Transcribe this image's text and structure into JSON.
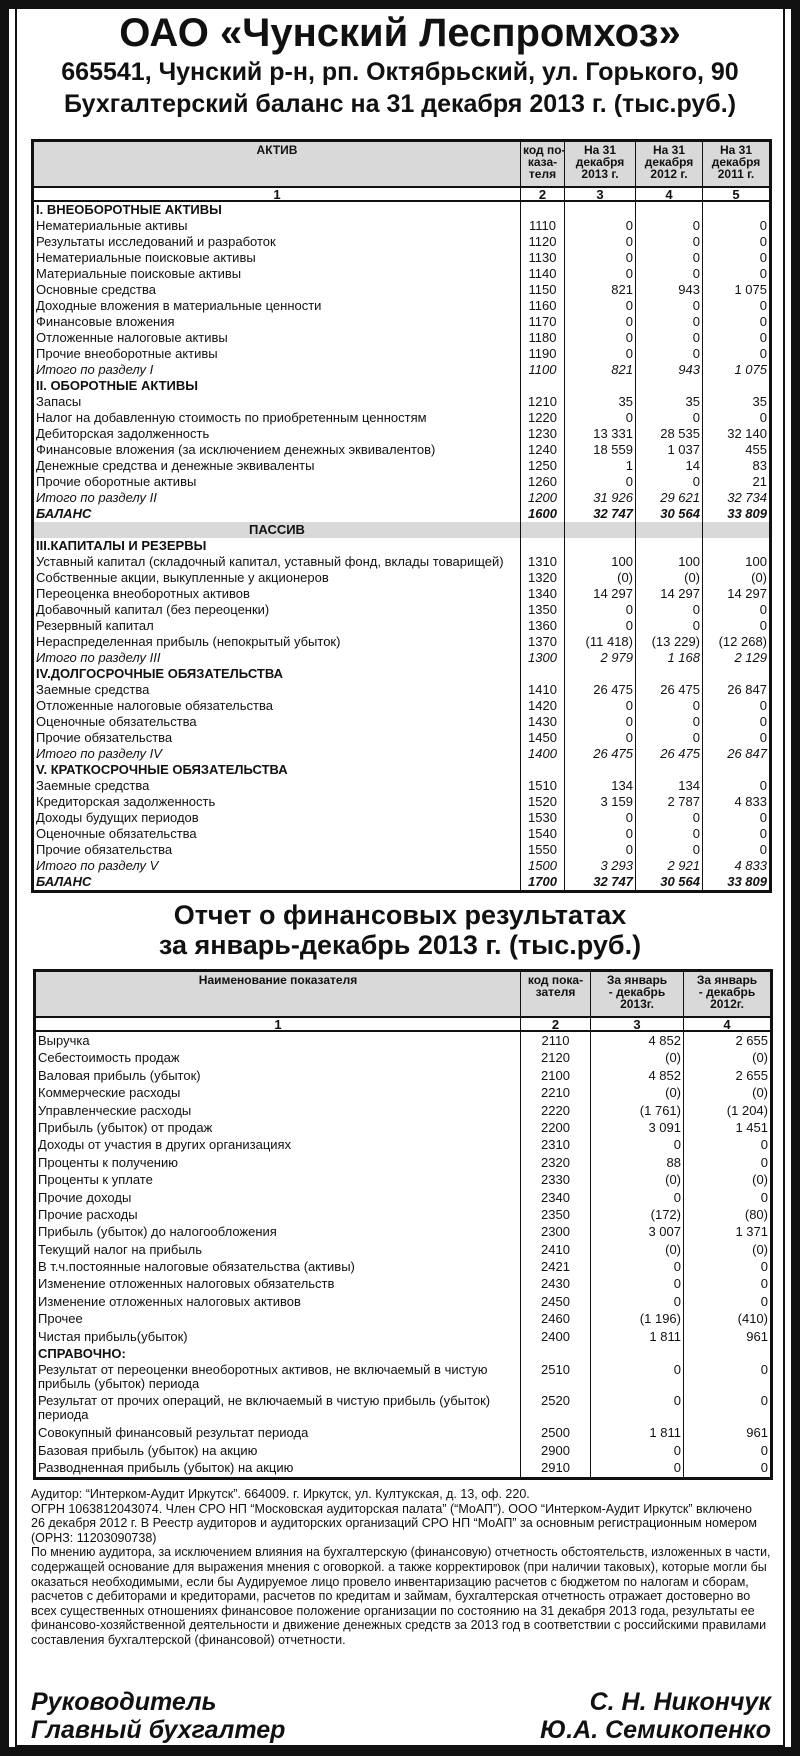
{
  "header": {
    "company": "ОАО «Чунский Леспромхоз»",
    "address": "665541, Чунский р-н, рп. Октябрьский, ул. Горького, 90",
    "title": "Бухгалтерский баланс на 31 декабря 2013 г. (тыс.руб.)"
  },
  "balance_sheet": {
    "columns": [
      "АКТИВ",
      "код по-\nказа-\nтеля",
      "На 31\nдекабря\n2013 г.",
      "На 31\nдекабря\n2012 г.",
      "На 31\nдекабря\n2011 г."
    ],
    "column_numbers": [
      "1",
      "2",
      "3",
      "4",
      "5"
    ],
    "rows": [
      {
        "type": "section",
        "label": "I. ВНЕОБОРОТНЫЕ  АКТИВЫ",
        "code": "",
        "values": [
          "",
          "",
          ""
        ]
      },
      {
        "type": "item",
        "label": "Нематериальные активы",
        "code": "1110",
        "values": [
          "0",
          "0",
          "0"
        ]
      },
      {
        "type": "item",
        "label": "Результаты исследований и разработок",
        "code": "1120",
        "values": [
          "0",
          "0",
          "0"
        ]
      },
      {
        "type": "item",
        "label": "Нематериальные поисковые активы",
        "code": "1130",
        "values": [
          "0",
          "0",
          "0"
        ]
      },
      {
        "type": "item",
        "label": "Материальные поисковые активы",
        "code": "1140",
        "values": [
          "0",
          "0",
          "0"
        ]
      },
      {
        "type": "item",
        "label": "Основные средства",
        "code": "1150",
        "values": [
          "821",
          "943",
          "1 075"
        ]
      },
      {
        "type": "item",
        "label": "Доходные вложения в материальные ценности",
        "code": "1160",
        "values": [
          "0",
          "0",
          "0"
        ]
      },
      {
        "type": "item",
        "label": "Финансовые вложения",
        "code": "1170",
        "values": [
          "0",
          "0",
          "0"
        ]
      },
      {
        "type": "item",
        "label": "Отложенные налоговые активы",
        "code": "1180",
        "values": [
          "0",
          "0",
          "0"
        ]
      },
      {
        "type": "item",
        "label": "Прочие внеоборотные активы",
        "code": "1190",
        "values": [
          "0",
          "0",
          "0"
        ]
      },
      {
        "type": "total",
        "label": "Итого по разделу I",
        "code": "1100",
        "values": [
          "821",
          "943",
          "1 075"
        ]
      },
      {
        "type": "section",
        "label": "II. ОБОРОТНЫЕ  АКТИВЫ",
        "code": "",
        "values": [
          "",
          "",
          ""
        ]
      },
      {
        "type": "item",
        "label": "Запасы",
        "code": "1210",
        "values": [
          "35",
          "35",
          "35"
        ]
      },
      {
        "type": "item",
        "label": "Налог на добавленную стоимость по приобретенным ценностям",
        "code": "1220",
        "values": [
          "0",
          "0",
          "0"
        ]
      },
      {
        "type": "item",
        "label": "Дебиторская задолженность",
        "code": "1230",
        "values": [
          "13 331",
          "28 535",
          "32 140"
        ]
      },
      {
        "type": "item",
        "label": "Финансовые вложения (за исключением денежных эквивалентов)",
        "code": "1240",
        "values": [
          "18 559",
          "1 037",
          "455"
        ]
      },
      {
        "type": "item",
        "label": "Денежные средства и денежные эквиваленты",
        "code": "1250",
        "values": [
          "1",
          "14",
          "83"
        ]
      },
      {
        "type": "item",
        "label": "Прочие оборотные активы",
        "code": "1260",
        "values": [
          "0",
          "0",
          "21"
        ]
      },
      {
        "type": "total",
        "label": "Итого по разделу II",
        "code": "1200",
        "values": [
          "31 926",
          "29 621",
          "32 734"
        ]
      },
      {
        "type": "balance",
        "label": "БАЛАНС",
        "code": "1600",
        "values": [
          "32 747",
          "30 564",
          "33 809"
        ]
      },
      {
        "type": "passiv",
        "label": "ПАССИВ",
        "code": "",
        "values": [
          "",
          "",
          ""
        ]
      },
      {
        "type": "section",
        "label": "III.КАПИТАЛЫ И РЕЗЕРВЫ",
        "code": "",
        "values": [
          "",
          "",
          ""
        ]
      },
      {
        "type": "item",
        "label": "Уставный капитал (складочный капитал, уставный фонд, вклады товарищей)",
        "code": "1310",
        "values": [
          "100",
          "100",
          "100"
        ]
      },
      {
        "type": "item",
        "label": "Собственные акции, выкупленные у акционеров",
        "code": "1320",
        "values": [
          "(0)",
          "(0)",
          "(0)"
        ]
      },
      {
        "type": "item",
        "label": "Переоценка внеоборотных активов",
        "code": "1340",
        "values": [
          "14 297",
          "14 297",
          "14 297"
        ]
      },
      {
        "type": "item",
        "label": "Добавочный капитал (без переоценки)",
        "code": "1350",
        "values": [
          "0",
          "0",
          "0"
        ]
      },
      {
        "type": "item",
        "label": "Резервный капитал",
        "code": "1360",
        "values": [
          "0",
          "0",
          "0"
        ]
      },
      {
        "type": "item",
        "label": "Нераспределенная прибыль (непокрытый убыток)",
        "code": "1370",
        "values": [
          "(11 418)",
          "(13 229)",
          "(12 268)"
        ]
      },
      {
        "type": "total",
        "label": "Итого по разделу III",
        "code": "1300",
        "values": [
          "2 979",
          "1 168",
          "2 129"
        ]
      },
      {
        "type": "section",
        "label": "IV.ДОЛГОСРОЧНЫЕ ОБЯЗАТЕЛЬСТВА",
        "code": "",
        "values": [
          "",
          "",
          ""
        ]
      },
      {
        "type": "item",
        "label": "Заемные средства",
        "code": "1410",
        "values": [
          "26 475",
          "26 475",
          "26 847"
        ]
      },
      {
        "type": "item",
        "label": "Отложенные налоговые обязательства",
        "code": "1420",
        "values": [
          "0",
          "0",
          "0"
        ]
      },
      {
        "type": "item",
        "label": "Оценочные обязательства",
        "code": "1430",
        "values": [
          "0",
          "0",
          "0"
        ]
      },
      {
        "type": "item",
        "label": "Прочие обязательства",
        "code": "1450",
        "values": [
          "0",
          "0",
          "0"
        ]
      },
      {
        "type": "total",
        "label": "Итого по разделу IV",
        "code": "1400",
        "values": [
          "26 475",
          "26 475",
          "26 847"
        ]
      },
      {
        "type": "section",
        "label": "V. КРАТКОСРОЧНЫЕ ОБЯЗАТЕЛЬСТВА",
        "code": "",
        "values": [
          "",
          "",
          ""
        ]
      },
      {
        "type": "item",
        "label": "Заемные средства",
        "code": "1510",
        "values": [
          "134",
          "134",
          "0"
        ]
      },
      {
        "type": "item",
        "label": "Кредиторская задолженность",
        "code": "1520",
        "values": [
          "3 159",
          "2 787",
          "4 833"
        ]
      },
      {
        "type": "item",
        "label": "Доходы будущих периодов",
        "code": "1530",
        "values": [
          "0",
          "0",
          "0"
        ]
      },
      {
        "type": "item",
        "label": "Оценочные обязательства",
        "code": "1540",
        "values": [
          "0",
          "0",
          "0"
        ]
      },
      {
        "type": "item",
        "label": "Прочие обязательства",
        "code": "1550",
        "values": [
          "0",
          "0",
          "0"
        ]
      },
      {
        "type": "total",
        "label": "Итого по разделу V",
        "code": "1500",
        "values": [
          "3 293",
          "2 921",
          "4 833"
        ]
      },
      {
        "type": "balance",
        "label": "БАЛАНС",
        "code": "1700",
        "values": [
          "32 747",
          "30 564",
          "33 809"
        ]
      }
    ]
  },
  "income_statement": {
    "title_line1": "Отчет о финансовых результатах",
    "title_line2": "за январь-декабрь 2013 г. (тыс.руб.)",
    "columns": [
      "Наименование показателя",
      "код пока-\nзателя",
      "За январь\n- декабрь\n2013г.",
      "За январь\n- декабрь\n2012г."
    ],
    "column_numbers": [
      "1",
      "2",
      "3",
      "4"
    ],
    "rows": [
      {
        "type": "item",
        "label": "Выручка",
        "code": "2110",
        "values": [
          "4 852",
          "2 655"
        ]
      },
      {
        "type": "item",
        "label": "Себестоимость продаж",
        "code": "2120",
        "values": [
          "(0)",
          "(0)"
        ]
      },
      {
        "type": "item",
        "label": "Валовая прибыль (убыток)",
        "code": "2100",
        "values": [
          "4 852",
          "2 655"
        ]
      },
      {
        "type": "item",
        "label": "Коммерческие расходы",
        "code": "2210",
        "values": [
          "(0)",
          "(0)"
        ]
      },
      {
        "type": "item",
        "label": "Управленческие расходы",
        "code": "2220",
        "values": [
          "(1 761)",
          "(1 204)"
        ]
      },
      {
        "type": "item",
        "label": "Прибыль (убыток) от продаж",
        "code": "2200",
        "values": [
          "3 091",
          "1 451"
        ]
      },
      {
        "type": "item",
        "label": "Доходы от участия в других организациях",
        "code": "2310",
        "values": [
          "0",
          "0"
        ]
      },
      {
        "type": "item",
        "label": "Проценты к получению",
        "code": "2320",
        "values": [
          "88",
          "0"
        ]
      },
      {
        "type": "item",
        "label": "Проценты к уплате",
        "code": "2330",
        "values": [
          "(0)",
          "(0)"
        ]
      },
      {
        "type": "item",
        "label": "Прочие доходы",
        "code": "2340",
        "values": [
          "0",
          "0"
        ]
      },
      {
        "type": "item",
        "label": "Прочие расходы",
        "code": "2350",
        "values": [
          "(172)",
          "(80)"
        ]
      },
      {
        "type": "item",
        "label": "Прибыль (убыток) до налогообложения",
        "code": "2300",
        "values": [
          "3 007",
          "1 371"
        ]
      },
      {
        "type": "item",
        "label": "Текущий налог на прибыль",
        "code": "2410",
        "values": [
          "(0)",
          "(0)"
        ]
      },
      {
        "type": "item",
        "label": "В т.ч.постоянные налоговые обязательства (активы)",
        "code": "2421",
        "values": [
          "0",
          "0"
        ]
      },
      {
        "type": "item",
        "label": "Изменение отложенных налоговых обязательств",
        "code": "2430",
        "values": [
          "0",
          "0"
        ]
      },
      {
        "type": "item",
        "label": "Изменение отложенных налоговых активов",
        "code": "2450",
        "values": [
          "0",
          "0"
        ]
      },
      {
        "type": "item",
        "label": "Прочее",
        "code": "2460",
        "values": [
          "(1 196)",
          "(410)"
        ]
      },
      {
        "type": "item",
        "label": "Чистая прибыль(убыток)",
        "code": "2400",
        "values": [
          "1 811",
          "961"
        ]
      },
      {
        "type": "section",
        "label": "СПРАВОЧНО:",
        "code": "",
        "values": [
          "",
          ""
        ]
      },
      {
        "type": "tall",
        "label": "Результат от переоценки внеоборотных активов, не включаемый в чистую прибыль (убыток) периода",
        "code": "2510",
        "values": [
          "0",
          "0"
        ]
      },
      {
        "type": "tall",
        "label": "Результат от прочих операций, не включаемый в чистую прибыль (убыток) периода",
        "code": "2520",
        "values": [
          "0",
          "0"
        ]
      },
      {
        "type": "item",
        "label": "Совокупный финансовый результат периода",
        "code": "2500",
        "values": [
          "1 811",
          "961"
        ]
      },
      {
        "type": "item",
        "label": "Базовая прибыль (убыток) на акцию",
        "code": "2900",
        "values": [
          "0",
          "0"
        ]
      },
      {
        "type": "item",
        "label": "Разводненная прибыль (убыток) на акцию",
        "code": "2910",
        "values": [
          "0",
          "0"
        ]
      }
    ]
  },
  "auditor_text": [
    "Аудитор: “Интерком-Аудит Иркутск”. 664009. г. Иркутск, ул. Култукская, д. 13, оф. 220.",
    "ОГРН 1063812043074. Член СРО НП “Московская аудиторская палата” (“МоАП”). ООО “Интерком-Аудит Иркутск” включено",
    "26 декабря 2012 г. В Реестр аудиторов и аудиторских организаций СРО НП “МоАП” за основным регистрационным номером",
    "(ОРНЗ: 11203090738)",
    "По мнению аудитора, за исключением влияния на бухгалтерскую (финансовую) отчетность обстоятельств, изложенных в части,",
    "содержащей основание для выражения мнения с оговоркой. а также корректировок (при наличии таковых), которые могли бы",
    "оказаться необходимыми, если бы Аудируемое лицо провело инвентаризацию расчетов с бюджетом по налогам и сборам,",
    "расчетов с дебиторами и кредиторами, расчетов по кредитам и займам, бухгалтерская отчетность отражает достоверно во",
    "всех существенных отношениях финансовое положение организации по состоянию на 31 декабря 2013 года, результаты ее",
    "финансово-хозяйственной деятельности и движение денежных средств за 2013 год в соответствии с российскими правилами",
    "составления бухгалтерской (финансовой) отчетности."
  ],
  "signatures": [
    {
      "role": "Руководитель",
      "name": "С. Н. Никончук"
    },
    {
      "role": "Главный бухгалтер",
      "name": "Ю.А. Семикопенко"
    }
  ],
  "colors": {
    "header_fill": "#d9d9d9",
    "ink": "#111111"
  }
}
